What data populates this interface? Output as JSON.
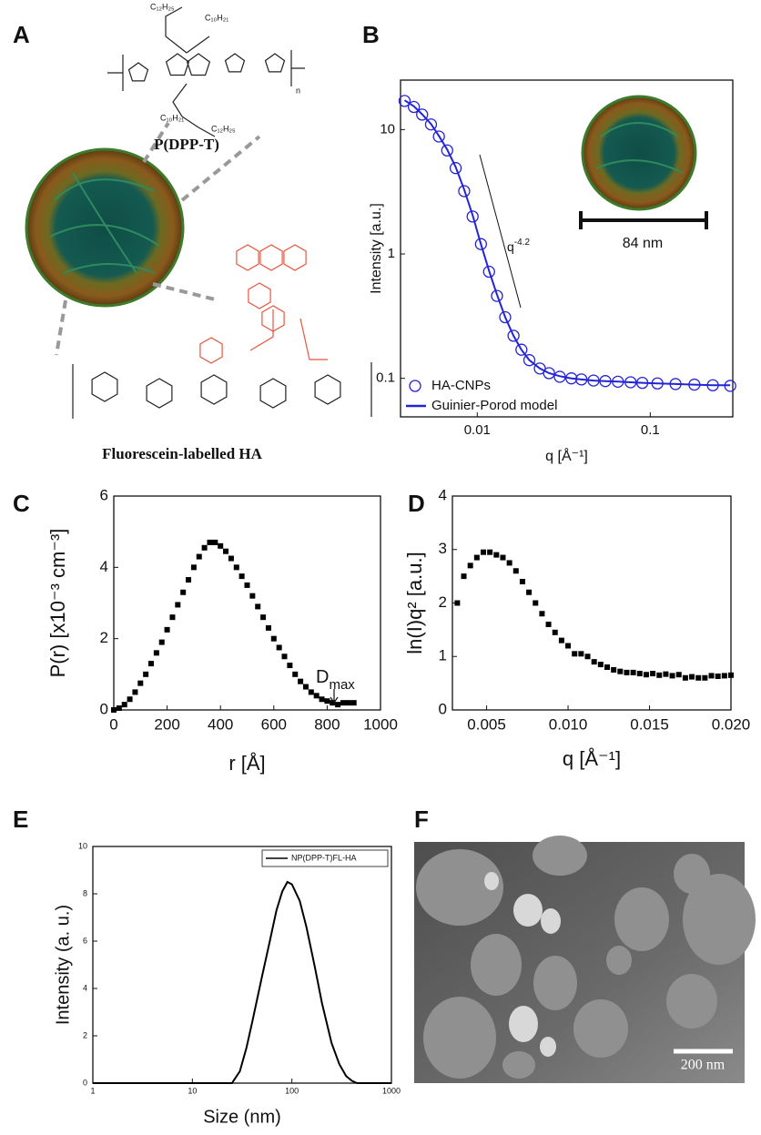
{
  "panel_labels": [
    "A",
    "B",
    "C",
    "D",
    "E",
    "F"
  ],
  "structure": {
    "polymer_name": "P(DPP-T)",
    "conjugate_name": "Fluorescein-labelled HA",
    "side_chains": [
      "C₁₂H₂₅",
      "C₁₀H₂₁",
      "C₁₀H₂₁",
      "C₁₂H₂₅"
    ],
    "repeat_index": "n"
  },
  "micrograph": {
    "scale_bar_label": "200 nm"
  },
  "chart_data": [
    {
      "type": "scatter",
      "xlabel": "q [Å⁻¹]",
      "ylabel": "Intensity [a.u.]",
      "xlog": true,
      "ylog": true,
      "xlim": [
        0.0036,
        0.3
      ],
      "ylim": [
        0.049,
        25
      ],
      "xticks": [
        0.01,
        0.1
      ],
      "yticks": [
        0.1,
        1,
        10
      ],
      "x": [
        0.0038,
        0.0043,
        0.0048,
        0.0054,
        0.006,
        0.0067,
        0.0075,
        0.0084,
        0.0094,
        0.0105,
        0.0117,
        0.013,
        0.0145,
        0.0162,
        0.018,
        0.02,
        0.023,
        0.026,
        0.03,
        0.035,
        0.04,
        0.047,
        0.055,
        0.065,
        0.077,
        0.09,
        0.11,
        0.14,
        0.18,
        0.23,
        0.29
      ],
      "series": [
        {
          "name": "HA-CNPs",
          "color": "#2323d8",
          "marker": "open-circle",
          "values": [
            17,
            15.2,
            13.2,
            11,
            8.8,
            6.8,
            4.9,
            3.2,
            2.0,
            1.2,
            0.72,
            0.46,
            0.31,
            0.22,
            0.17,
            0.14,
            0.12,
            0.11,
            0.103,
            0.1,
            0.098,
            0.096,
            0.095,
            0.094,
            0.093,
            0.092,
            0.091,
            0.09,
            0.089,
            0.088,
            0.087
          ]
        },
        {
          "name": "Guinier-Porod model",
          "color": "#2323d8",
          "marker": "line",
          "values": [
            17.2,
            15.4,
            13.3,
            11.1,
            8.9,
            6.9,
            5.0,
            3.3,
            2.05,
            1.2,
            0.73,
            0.47,
            0.31,
            0.22,
            0.17,
            0.14,
            0.12,
            0.11,
            0.104,
            0.1,
            0.098,
            0.096,
            0.095,
            0.094,
            0.093,
            0.092,
            0.091,
            0.09,
            0.089,
            0.088,
            0.088
          ]
        }
      ],
      "legend": "lower left",
      "annotation": {
        "text": "q",
        "sup": "-4.2"
      },
      "inset_label": "84 nm"
    },
    {
      "type": "scatter",
      "xlabel": "r [Å]",
      "ylabel": "P(r) [x10⁻³ cm⁻³]",
      "xlim": [
        0,
        1000
      ],
      "ylim": [
        0,
        6
      ],
      "xticks": [
        0,
        200,
        400,
        600,
        800,
        1000
      ],
      "yticks": [
        0,
        2,
        4,
        6
      ],
      "x": [
        0,
        20,
        40,
        60,
        80,
        100,
        120,
        140,
        160,
        180,
        200,
        220,
        240,
        260,
        280,
        300,
        320,
        340,
        360,
        380,
        400,
        420,
        440,
        460,
        480,
        500,
        520,
        540,
        560,
        580,
        600,
        620,
        640,
        660,
        680,
        700,
        720,
        740,
        760,
        780,
        800,
        820,
        840,
        860,
        880,
        900
      ],
      "series": [
        {
          "color": "#000000",
          "marker": "square",
          "values": [
            0.0,
            0.05,
            0.15,
            0.3,
            0.5,
            0.75,
            1.0,
            1.3,
            1.6,
            1.9,
            2.25,
            2.6,
            2.95,
            3.3,
            3.65,
            4.0,
            4.3,
            4.55,
            4.7,
            4.7,
            4.6,
            4.45,
            4.25,
            4.0,
            3.75,
            3.5,
            3.2,
            2.9,
            2.6,
            2.3,
            2.0,
            1.75,
            1.5,
            1.25,
            1.0,
            0.8,
            0.65,
            0.5,
            0.4,
            0.3,
            0.25,
            0.2,
            0.15,
            0.2,
            0.2,
            0.2
          ]
        }
      ],
      "annotation": {
        "text": "D",
        "sub": "max"
      }
    },
    {
      "type": "scatter",
      "xlabel": "q [Å⁻¹]",
      "ylabel": "ln(I)q² [a.u.]",
      "xlim": [
        0.0029,
        0.02
      ],
      "ylim": [
        0,
        4
      ],
      "xticks": [
        0.005,
        {
          "value": 0.01,
          "label": "0.010"
        },
        0.015,
        {
          "value": 0.02,
          "label": "0.020"
        }
      ],
      "yticks": [
        0,
        1,
        2,
        3,
        4
      ],
      "x": [
        0.0032,
        0.0036,
        0.004,
        0.0044,
        0.0048,
        0.0052,
        0.0056,
        0.006,
        0.0064,
        0.0068,
        0.0072,
        0.0076,
        0.008,
        0.0084,
        0.0088,
        0.0092,
        0.0096,
        0.01,
        0.0104,
        0.0108,
        0.0112,
        0.0116,
        0.012,
        0.0124,
        0.0128,
        0.0132,
        0.0136,
        0.014,
        0.0144,
        0.0148,
        0.0152,
        0.0156,
        0.016,
        0.0164,
        0.0168,
        0.0172,
        0.0176,
        0.018,
        0.0184,
        0.0188,
        0.0192,
        0.0196,
        0.02
      ],
      "series": [
        {
          "color": "#000000",
          "marker": "square",
          "values": [
            2.0,
            2.5,
            2.7,
            2.85,
            2.95,
            2.95,
            2.9,
            2.85,
            2.75,
            2.6,
            2.4,
            2.2,
            2.0,
            1.8,
            1.6,
            1.45,
            1.3,
            1.2,
            1.05,
            1.05,
            1.0,
            0.9,
            0.85,
            0.8,
            0.75,
            0.72,
            0.7,
            0.7,
            0.68,
            0.66,
            0.68,
            0.65,
            0.67,
            0.64,
            0.66,
            0.6,
            0.62,
            0.6,
            0.6,
            0.64,
            0.63,
            0.64,
            0.65
          ]
        }
      ]
    },
    {
      "type": "line",
      "xlabel": "Size (nm)",
      "ylabel": "Intensity (a. u.)",
      "xlog": true,
      "xlim": [
        1,
        1000
      ],
      "ylim": [
        0,
        10
      ],
      "xticks": [
        1,
        10,
        100,
        1000
      ],
      "yticks": [
        0,
        2,
        4,
        6,
        8,
        10
      ],
      "x": [
        1,
        20,
        25,
        30,
        35,
        40,
        50,
        60,
        70,
        80,
        90,
        100,
        120,
        140,
        170,
        200,
        250,
        300,
        350,
        400,
        450,
        1000
      ],
      "series": [
        {
          "name": "NP(DPP-T)FL-HA",
          "color": "#000000",
          "marker": "line",
          "values": [
            0,
            0,
            0,
            0.5,
            1.5,
            2.6,
            4.5,
            6.0,
            7.3,
            8.1,
            8.5,
            8.4,
            7.7,
            6.6,
            4.9,
            3.4,
            1.7,
            0.8,
            0.3,
            0.1,
            0,
            0
          ]
        }
      ],
      "legend": "upper right"
    }
  ]
}
